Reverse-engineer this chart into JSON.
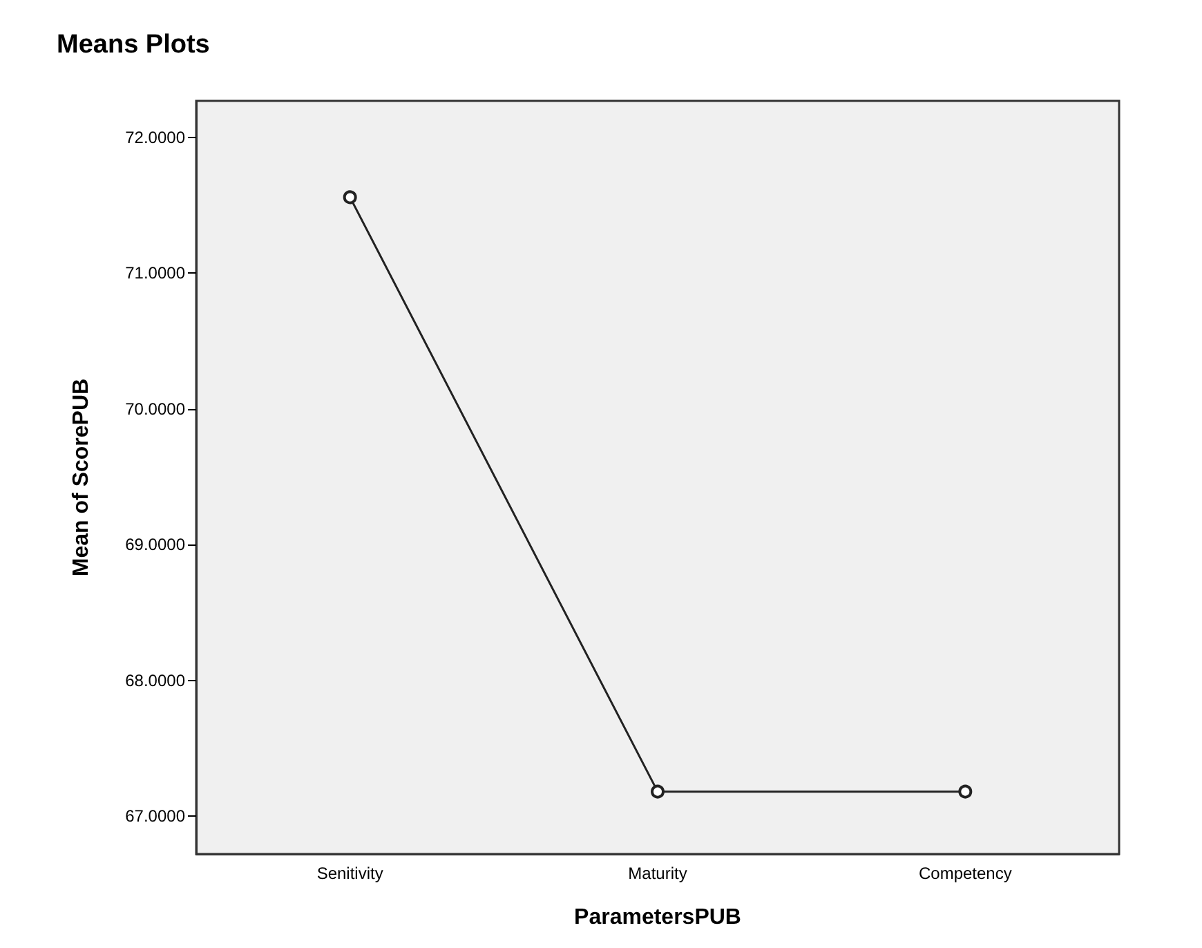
{
  "chart_data": {
    "type": "line",
    "title": "Means Plots",
    "xlabel": "ParametersPUB",
    "ylabel": "Mean of ScorePUB",
    "categories": [
      "Senitivity",
      "Maturity",
      "Competency"
    ],
    "series": [
      {
        "color": "#222222",
        "values": [
          71.56,
          67.18,
          67.18
        ]
      }
    ],
    "ylim": [
      66.72,
      72.27
    ],
    "yticks": [
      {
        "value": 67,
        "label": "67.0000"
      },
      {
        "value": 68,
        "label": "68.0000"
      },
      {
        "value": 69,
        "label": "69.0000"
      },
      {
        "value": 70,
        "label": "70.0000"
      },
      {
        "value": 71,
        "label": "71.0000"
      },
      {
        "value": 72,
        "label": "72.0000"
      }
    ],
    "grid": false,
    "marker": "circle",
    "line_style": "solid"
  }
}
